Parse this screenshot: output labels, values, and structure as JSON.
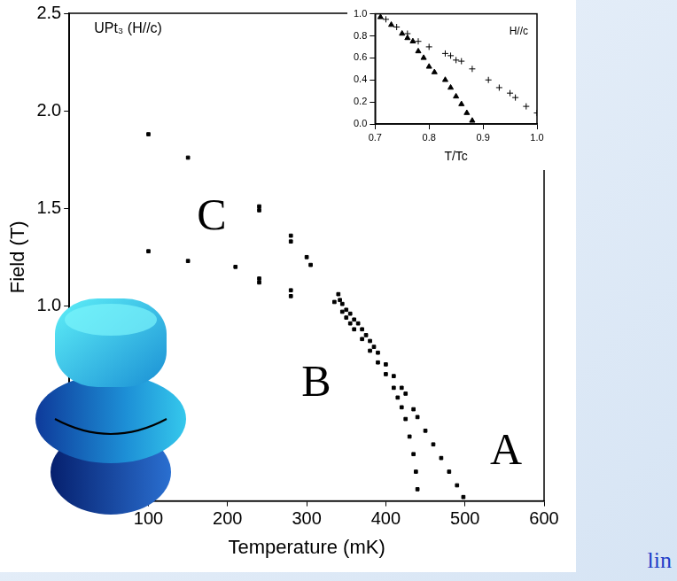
{
  "chart_data": [
    {
      "type": "scatter",
      "title": "UPt₃ (H//c)",
      "x_label": "Temperature (mK)",
      "y_label": "Field (T)",
      "x": [
        100,
        150,
        240,
        240,
        280,
        280,
        300,
        305,
        340,
        342,
        345,
        350,
        355,
        360,
        365,
        370,
        375,
        380,
        385,
        390,
        400,
        410,
        420,
        425,
        435,
        440,
        450,
        460,
        470,
        480,
        490,
        498,
        100,
        150,
        210,
        240,
        240,
        280,
        280,
        335,
        345,
        350,
        355,
        360,
        370,
        380,
        390,
        400,
        410,
        415,
        420,
        425,
        430,
        435,
        438,
        440
      ],
      "values": [
        1.88,
        1.76,
        1.51,
        1.49,
        1.36,
        1.33,
        1.25,
        1.21,
        1.06,
        1.03,
        1.01,
        0.98,
        0.96,
        0.93,
        0.91,
        0.88,
        0.85,
        0.82,
        0.79,
        0.76,
        0.7,
        0.64,
        0.58,
        0.55,
        0.47,
        0.43,
        0.36,
        0.29,
        0.22,
        0.15,
        0.08,
        0.02,
        1.28,
        1.23,
        1.2,
        1.14,
        1.12,
        1.08,
        1.05,
        1.02,
        0.97,
        0.94,
        0.91,
        0.88,
        0.83,
        0.77,
        0.71,
        0.65,
        0.58,
        0.53,
        0.48,
        0.42,
        0.33,
        0.24,
        0.15,
        0.06
      ],
      "color": "#000000",
      "marker": "square",
      "xlim": [
        0,
        600
      ],
      "xticks": [
        100,
        200,
        300,
        400,
        500,
        600
      ],
      "ylim": [
        0,
        2.5
      ],
      "yticks": [
        {
          "value": 1,
          "label": "1.0"
        },
        {
          "value": 1.5,
          "label": "1.5"
        },
        {
          "value": 2,
          "label": "2.0"
        },
        {
          "value": 2.5,
          "label": "2.5"
        }
      ],
      "grid": false,
      "annotations": [
        "C",
        "B",
        "A"
      ]
    },
    {
      "type": "scatter",
      "title": "H//c",
      "x_label": "T/Tc",
      "series": [
        {
          "color": "#000000",
          "marker": "triangle",
          "x": [
            0.71,
            0.73,
            0.75,
            0.76,
            0.77,
            0.78,
            0.79,
            0.8,
            0.81,
            0.83,
            0.84,
            0.85,
            0.86,
            0.87,
            0.88
          ],
          "values": [
            0.97,
            0.9,
            0.82,
            0.78,
            0.75,
            0.66,
            0.6,
            0.52,
            0.47,
            0.4,
            0.33,
            0.25,
            0.18,
            0.1,
            0.03
          ]
        },
        {
          "color": "#000000",
          "marker": "cross",
          "x": [
            0.72,
            0.74,
            0.76,
            0.78,
            0.8,
            0.83,
            0.84,
            0.85,
            0.86,
            0.88,
            0.91,
            0.93,
            0.95,
            0.96,
            0.98,
            1.0
          ],
          "values": [
            0.95,
            0.88,
            0.82,
            0.75,
            0.7,
            0.64,
            0.62,
            0.58,
            0.57,
            0.5,
            0.4,
            0.33,
            0.28,
            0.24,
            0.16,
            0.1
          ]
        }
      ],
      "xlim": [
        0.7,
        1.0
      ],
      "xticks": [
        0.7,
        0.8,
        0.9,
        {
          "value": 1,
          "label": "1.0"
        }
      ],
      "ylim": [
        0,
        1.0
      ],
      "yticks": [
        {
          "value": 0,
          "label": "0.0"
        },
        0.2,
        0.4,
        0.6,
        0.8,
        {
          "value": 1,
          "label": "1.0"
        }
      ],
      "grid": false
    }
  ],
  "caption": "lin"
}
